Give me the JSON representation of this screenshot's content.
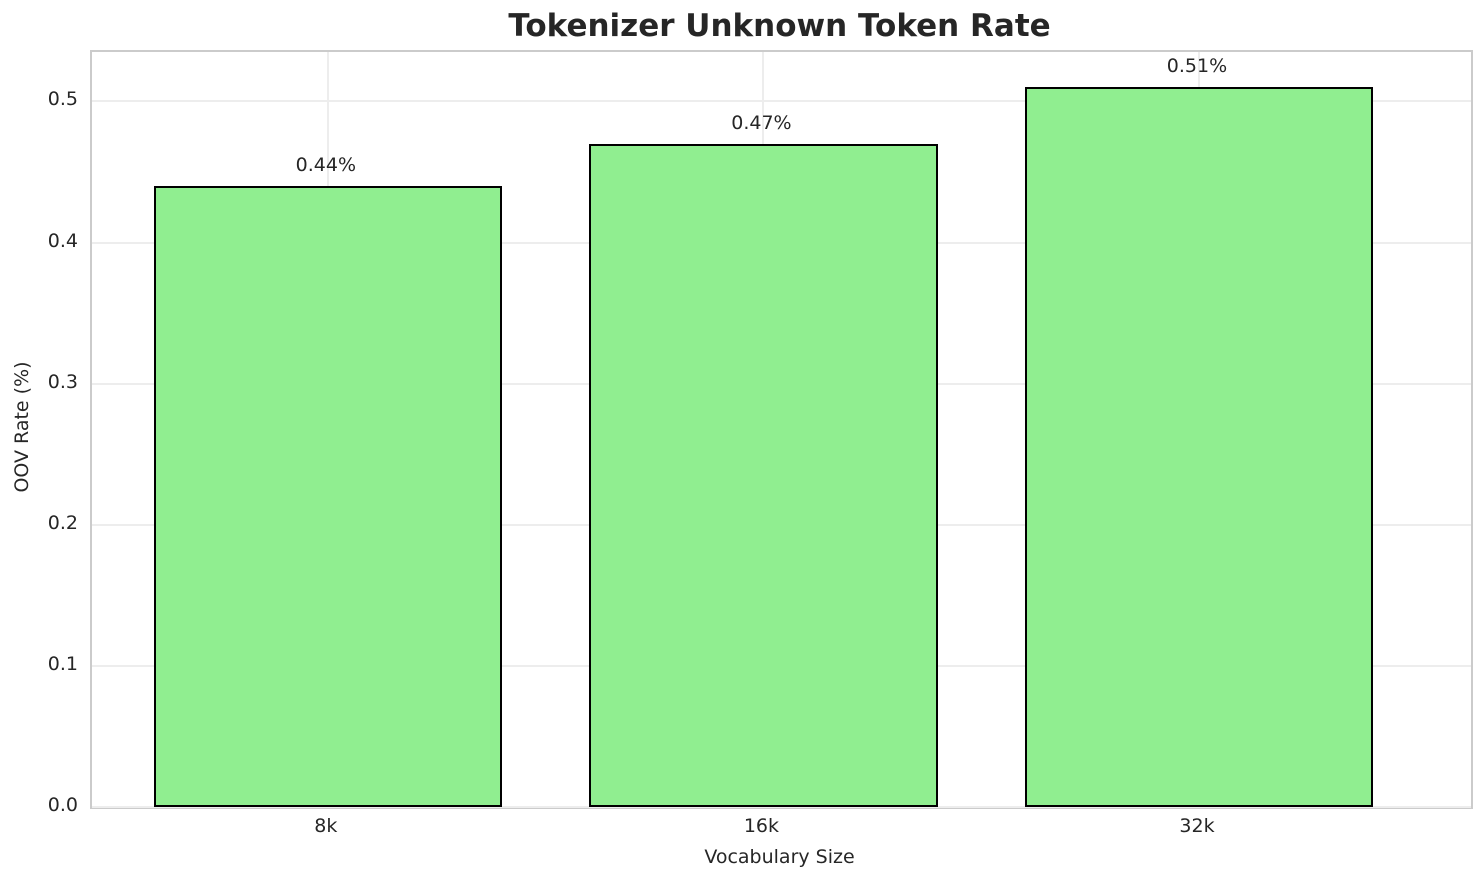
{
  "chart_data": {
    "type": "bar",
    "title": "Tokenizer Unknown Token Rate",
    "xlabel": "Vocabulary Size",
    "ylabel": "OOV Rate (%)",
    "categories": [
      "8k",
      "16k",
      "32k"
    ],
    "values": [
      0.44,
      0.47,
      0.51
    ],
    "value_labels": [
      "0.44%",
      "0.47%",
      "0.51%"
    ],
    "yticks": [
      0.0,
      0.1,
      0.2,
      0.3,
      0.4,
      0.5
    ],
    "ytick_labels": [
      "0.0",
      "0.1",
      "0.2",
      "0.3",
      "0.4",
      "0.5"
    ],
    "ylim": [
      0,
      0.535
    ],
    "grid": true,
    "legend": "none",
    "colors": {
      "bar_fill": "#90EE90",
      "bar_edge": "#000000",
      "grid": "#ededed",
      "spine": "#cbcbcb",
      "text": "#262626"
    }
  }
}
